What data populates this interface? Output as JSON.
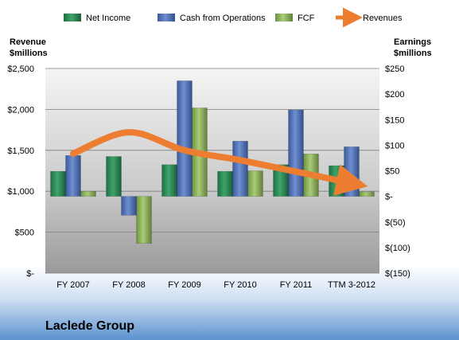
{
  "chart_data": {
    "type": "bar",
    "title": "",
    "footer_title": "Laclede Group",
    "categories": [
      "FY 2007",
      "FY 2008",
      "FY 2009",
      "FY 2010",
      "FY 2011",
      "TTM 3-2012"
    ],
    "series": [
      {
        "name": "Net Income",
        "axis": "right",
        "kind": "bar",
        "color": "#2e8b57",
        "values": [
          49,
          78,
          62,
          49,
          62,
          60
        ]
      },
      {
        "name": "Cash from Operations",
        "axis": "right",
        "kind": "bar",
        "color": "#4f6fb5",
        "values": [
          80,
          -37,
          226,
          108,
          169,
          97
        ]
      },
      {
        "name": "FCF",
        "axis": "right",
        "kind": "bar",
        "color": "#8db35c",
        "values": [
          10,
          -92,
          173,
          50,
          83,
          9
        ]
      },
      {
        "name": "Revenues",
        "axis": "left",
        "kind": "line",
        "color": "#ed7d31",
        "values": [
          1460,
          1720,
          1500,
          1380,
          1240,
          1100
        ]
      }
    ],
    "left_axis": {
      "label_line1": "Revenue",
      "label_line2": "$millions",
      "ylim": [
        0,
        2500
      ],
      "ticks": [
        0,
        500,
        1000,
        1500,
        2000,
        2500
      ],
      "tick_labels": [
        "$-",
        "$500",
        "$1,000",
        "$1,500",
        "$2,000",
        "$2,500"
      ]
    },
    "right_axis": {
      "label_line1": "Earnings",
      "label_line2": "$millions",
      "ylim": [
        -150,
        250
      ],
      "ticks": [
        -150,
        -100,
        -50,
        0,
        50,
        100,
        150,
        200,
        250
      ],
      "tick_labels": [
        "$(150)",
        "$(100)",
        "$(50)",
        "$-",
        "$50",
        "$100",
        "$150",
        "$200",
        "$250"
      ]
    },
    "legend_position": "top",
    "grid": true
  }
}
